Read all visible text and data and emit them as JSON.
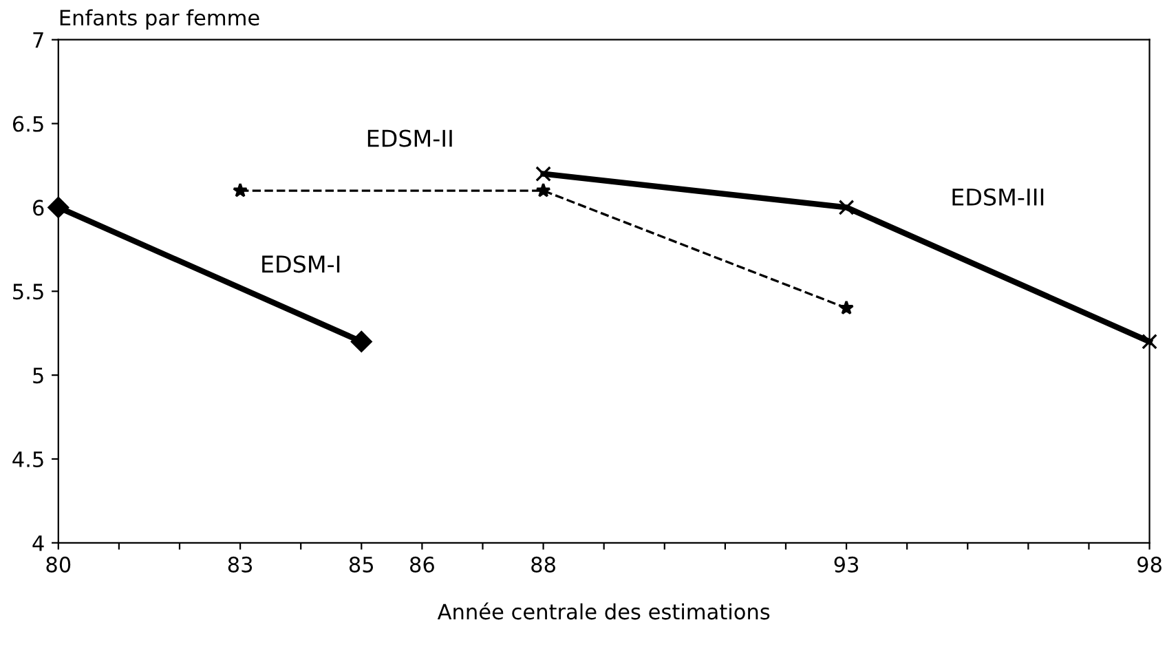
{
  "chart_data": {
    "type": "line",
    "ylabel": "Enfants par femme",
    "xlabel": "Année centrale des estimations",
    "xlim": [
      80,
      98
    ],
    "ylim": [
      4,
      7
    ],
    "xticks": [
      80,
      {
        "value": 81,
        "label": null
      },
      {
        "value": 82,
        "label": null
      },
      83,
      {
        "value": 84,
        "label": null
      },
      85,
      86,
      {
        "value": 87,
        "label": null
      },
      88,
      {
        "value": 89,
        "label": null
      },
      {
        "value": 90,
        "label": null
      },
      {
        "value": 91,
        "label": null
      },
      {
        "value": 92,
        "label": null
      },
      93,
      {
        "value": 94,
        "label": null
      },
      {
        "value": 95,
        "label": null
      },
      {
        "value": 96,
        "label": null
      },
      {
        "value": 97,
        "label": null
      },
      98
    ],
    "yticks": [
      4,
      4.5,
      5,
      5.5,
      6,
      6.5,
      7
    ],
    "grid": false,
    "legend": false,
    "series": [
      {
        "name": "EDSM-I",
        "color": "#000000",
        "x": [
          80,
          85
        ],
        "values": [
          6.0,
          5.2
        ],
        "marker": "diamond",
        "line_style": "solid"
      },
      {
        "name": "EDSM-II",
        "color": "#000000",
        "x": [
          83,
          88,
          93
        ],
        "values": [
          6.1,
          6.1,
          5.4
        ],
        "marker": "star",
        "line_style": "dashed"
      },
      {
        "name": "EDSM-III",
        "color": "#000000",
        "x": [
          88,
          93,
          98
        ],
        "values": [
          6.2,
          6.0,
          5.2
        ],
        "marker": "cross",
        "line_style": "solid"
      }
    ]
  }
}
